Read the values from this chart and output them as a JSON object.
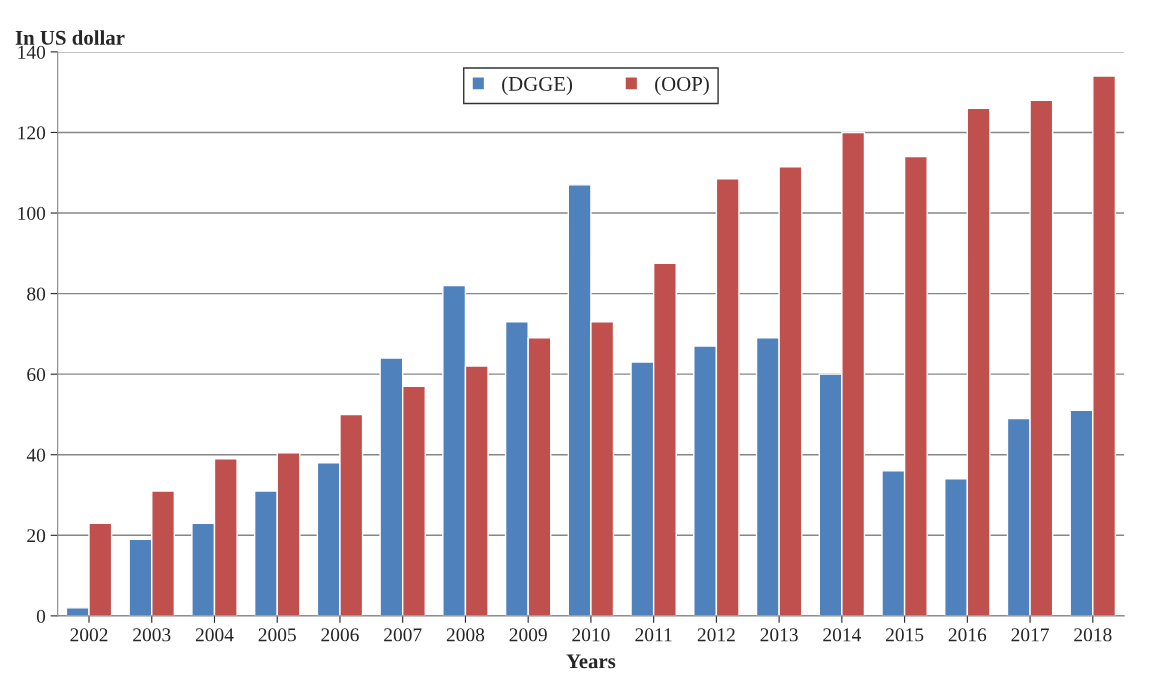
{
  "chart_data": {
    "type": "bar",
    "xlabel": "Years",
    "ylabel": "In US dollar",
    "categories": [
      "2002",
      "2003",
      "2004",
      "2005",
      "2006",
      "2007",
      "2008",
      "2009",
      "2010",
      "2011",
      "2012",
      "2013",
      "2014",
      "2015",
      "2016",
      "2017",
      "2018"
    ],
    "series": [
      {
        "name": "(DGGE)",
        "color": "#4f81bd",
        "values": [
          2,
          19,
          23,
          31,
          38,
          64,
          82,
          73,
          107,
          63,
          67,
          69,
          60,
          36,
          34,
          49,
          51
        ]
      },
      {
        "name": "(OOP)",
        "color": "#c0504d",
        "values": [
          23,
          31,
          39,
          40.5,
          50,
          57,
          62,
          69,
          73,
          87.5,
          108.5,
          111.5,
          120,
          114,
          126,
          128,
          134
        ]
      }
    ],
    "ylim": [
      0,
      140
    ],
    "yticks": [
      0,
      20,
      40,
      60,
      80,
      100,
      120,
      140
    ],
    "grid": "y",
    "legend": "top"
  }
}
